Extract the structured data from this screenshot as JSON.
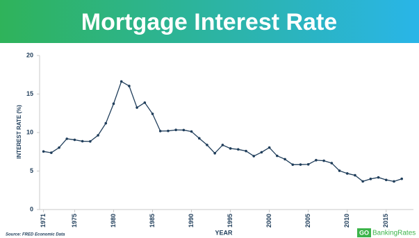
{
  "chart_data": {
    "type": "line",
    "title": "Mortgage Interest Rate",
    "y_label": "INTEREST RATE (%)",
    "x_label": "YEAR",
    "source": "Source: FRED Economic Data",
    "logo_badge": "GO",
    "logo_text": "BankingRates",
    "x": [
      1971,
      1972,
      1973,
      1974,
      1975,
      1976,
      1977,
      1978,
      1979,
      1980,
      1981,
      1982,
      1983,
      1984,
      1985,
      1986,
      1987,
      1988,
      1989,
      1990,
      1991,
      1992,
      1993,
      1994,
      1995,
      1996,
      1997,
      1998,
      1999,
      2000,
      2001,
      2002,
      2003,
      2004,
      2005,
      2006,
      2007,
      2008,
      2009,
      2010,
      2011,
      2012,
      2013,
      2014,
      2015,
      2016,
      2017
    ],
    "series": [
      {
        "color": "#1f3d5a",
        "values": [
          7.54,
          7.38,
          8.04,
          9.19,
          9.05,
          8.87,
          8.85,
          9.64,
          11.2,
          13.74,
          16.63,
          16.04,
          13.24,
          13.88,
          12.43,
          10.19,
          10.21,
          10.34,
          10.32,
          10.13,
          9.25,
          8.39,
          7.31,
          8.38,
          7.93,
          7.81,
          7.6,
          6.94,
          7.44,
          8.05,
          6.97,
          6.54,
          5.83,
          5.84,
          5.87,
          6.41,
          6.34,
          6.03,
          5.04,
          4.69,
          4.45,
          3.66,
          3.98,
          4.17,
          3.85,
          3.65,
          3.99
        ]
      }
    ],
    "xlim": [
      1970.5,
      2018.5
    ],
    "xticks": [
      1971,
      1975,
      1980,
      1985,
      1990,
      1995,
      2000,
      2005,
      2010,
      2015
    ],
    "ylim": [
      0,
      20
    ],
    "yticks": [
      0,
      5,
      10,
      15,
      20
    ]
  }
}
